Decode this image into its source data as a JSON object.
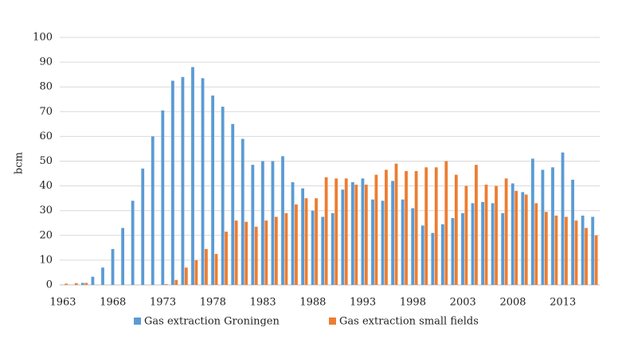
{
  "chart_data": {
    "type": "bar",
    "y_label": "bcm",
    "categories": [
      "1963",
      null,
      null,
      null,
      null,
      "1968",
      null,
      null,
      null,
      null,
      "1973",
      null,
      null,
      null,
      null,
      "1978",
      null,
      null,
      null,
      null,
      "1983",
      null,
      null,
      null,
      null,
      "1988",
      null,
      null,
      null,
      null,
      "1993",
      null,
      null,
      null,
      null,
      "1998",
      null,
      null,
      null,
      null,
      "2003",
      null,
      null,
      null,
      null,
      "2008",
      null,
      null,
      null,
      null,
      "2013",
      null,
      null,
      null
    ],
    "series": [
      {
        "name": "Gas extraction Groningen",
        "color": "#5b9bd5",
        "values": [
          0,
          0,
          0.8,
          3.3,
          7,
          14.5,
          23,
          34,
          47,
          60,
          70.5,
          82.5,
          84,
          88,
          83.5,
          76.5,
          72,
          65,
          59,
          48.5,
          50,
          50,
          52,
          41.5,
          39,
          30,
          27.5,
          29,
          38.5,
          41.5,
          43,
          34.5,
          34,
          42,
          34.5,
          31,
          24,
          21,
          24.5,
          27,
          29,
          33,
          33.5,
          33,
          29,
          41,
          37.5,
          51,
          46.5,
          47.5,
          53.5,
          42.5,
          28,
          27.5
        ]
      },
      {
        "name": "Gas extraction small fields",
        "color": "#ed7d31",
        "values": [
          0.5,
          0.7,
          0.8,
          0,
          0,
          0,
          0,
          0,
          0,
          0,
          0.3,
          2,
          7,
          10,
          14.5,
          12.5,
          21.5,
          26,
          25.5,
          23.5,
          26,
          27.5,
          29,
          32.5,
          35,
          35,
          43.5,
          43,
          43,
          40.5,
          40.5,
          44.5,
          46.5,
          49,
          46,
          46,
          47.5,
          47.5,
          50,
          44.5,
          40,
          48.5,
          40.5,
          40,
          43,
          38,
          36.5,
          33,
          29.5,
          28,
          27.5,
          26,
          23,
          20
        ]
      }
    ],
    "ylim": [
      0,
      100
    ],
    "yticks": [
      0,
      10,
      20,
      30,
      40,
      50,
      60,
      70,
      80,
      90,
      100
    ],
    "grid": true,
    "legend": "bottom"
  }
}
